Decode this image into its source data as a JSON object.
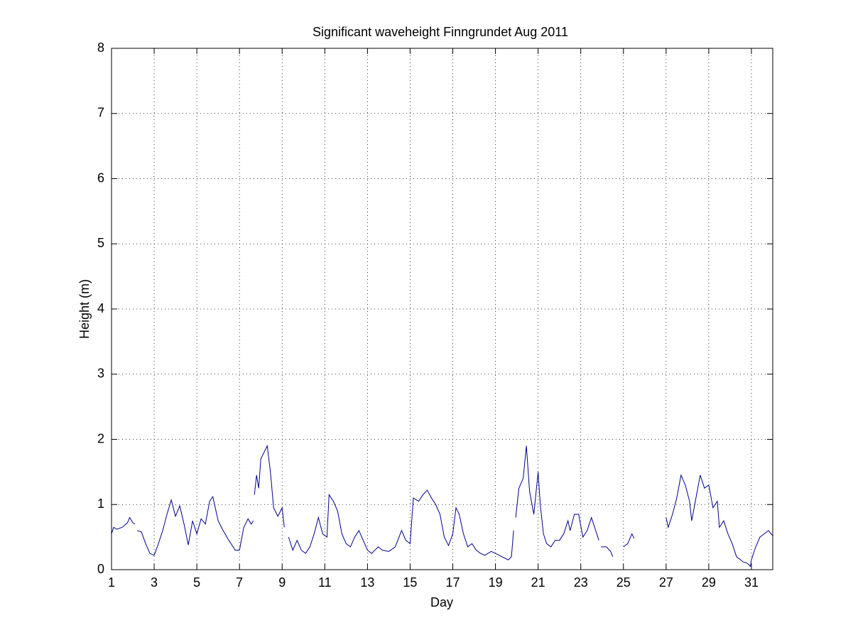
{
  "chart_data": {
    "type": "line",
    "title": "Significant waveheight Finngrundet Aug 2011",
    "xlabel": "Day",
    "ylabel": "Height (m)",
    "xlim": [
      1,
      32
    ],
    "ylim": [
      0,
      8
    ],
    "xticks": [
      1,
      3,
      5,
      7,
      9,
      11,
      13,
      15,
      17,
      19,
      21,
      23,
      25,
      27,
      29,
      31
    ],
    "yticks": [
      0,
      1,
      2,
      3,
      4,
      5,
      6,
      7,
      8
    ],
    "grid": true,
    "series": [
      {
        "color": "#00008b",
        "x": [
          1.0,
          1.1,
          1.25,
          1.5,
          1.75,
          1.85,
          2.0,
          2.1,
          2.15,
          2.2,
          2.4,
          2.6,
          2.8,
          3.0,
          3.2,
          3.4,
          3.6,
          3.8,
          4.0,
          4.2,
          4.4,
          4.6,
          4.8,
          5.0,
          5.2,
          5.4,
          5.6,
          5.75,
          6.0,
          6.2,
          6.5,
          6.8,
          7.0,
          7.2,
          7.4,
          7.55,
          7.65,
          7.68,
          7.7,
          7.8,
          7.9,
          8.0,
          8.15,
          8.3,
          8.45,
          8.6,
          8.8,
          9.0,
          9.1,
          9.2,
          9.3,
          9.5,
          9.7,
          9.9,
          10.1,
          10.3,
          10.5,
          10.7,
          10.9,
          11.1,
          11.2,
          11.4,
          11.6,
          11.8,
          12.0,
          12.2,
          12.4,
          12.6,
          12.8,
          13.0,
          13.2,
          13.5,
          13.7,
          14.0,
          14.3,
          14.6,
          14.8,
          15.0,
          15.15,
          15.4,
          15.6,
          15.8,
          16.0,
          16.2,
          16.4,
          16.6,
          16.8,
          17.0,
          17.15,
          17.3,
          17.5,
          17.7,
          17.9,
          18.1,
          18.3,
          18.5,
          18.8,
          19.0,
          19.3,
          19.6,
          19.75,
          19.85,
          19.9,
          19.95,
          20.1,
          20.3,
          20.45,
          20.6,
          20.8,
          21.0,
          21.1,
          21.25,
          21.4,
          21.6,
          21.8,
          22.0,
          22.2,
          22.4,
          22.5,
          22.7,
          22.9,
          23.1,
          23.3,
          23.5,
          23.7,
          23.85,
          23.9,
          23.95,
          24.2,
          24.4,
          24.5,
          24.75,
          25.0,
          25.2,
          25.4,
          25.5,
          26.2,
          27.0,
          27.1,
          27.3,
          27.5,
          27.7,
          27.9,
          28.1,
          28.2,
          28.4,
          28.6,
          28.8,
          29.0,
          29.2,
          29.4,
          29.5,
          29.7,
          29.9,
          30.1,
          30.3,
          30.5,
          30.6,
          30.8,
          30.95,
          31.0,
          31.2,
          31.4,
          31.6,
          31.8,
          32.0
        ],
        "values": [
          0.55,
          0.65,
          0.62,
          0.65,
          0.72,
          0.8,
          0.72,
          0.7,
          null,
          0.6,
          0.58,
          0.4,
          0.25,
          0.22,
          0.4,
          0.6,
          0.85,
          1.07,
          0.82,
          0.98,
          0.7,
          0.38,
          0.75,
          0.55,
          0.78,
          0.7,
          1.05,
          1.12,
          0.75,
          0.62,
          0.45,
          0.3,
          0.3,
          0.65,
          0.78,
          0.7,
          0.75,
          null,
          1.15,
          1.45,
          1.25,
          1.7,
          1.8,
          1.9,
          1.5,
          0.95,
          0.82,
          0.95,
          0.65,
          null,
          0.5,
          0.3,
          0.45,
          0.3,
          0.25,
          0.35,
          0.55,
          0.8,
          0.55,
          0.5,
          1.15,
          1.05,
          0.9,
          0.55,
          0.4,
          0.35,
          0.5,
          0.6,
          0.45,
          0.3,
          0.25,
          0.35,
          0.3,
          0.28,
          0.35,
          0.6,
          0.45,
          0.4,
          1.1,
          1.05,
          1.15,
          1.22,
          1.1,
          1.0,
          0.85,
          0.5,
          0.37,
          0.55,
          0.95,
          0.85,
          0.55,
          0.35,
          0.4,
          0.3,
          0.25,
          0.22,
          0.28,
          0.25,
          0.2,
          0.15,
          0.2,
          0.6,
          null,
          0.8,
          1.25,
          1.4,
          1.9,
          1.2,
          0.85,
          1.5,
          1.0,
          0.55,
          0.4,
          0.35,
          0.45,
          0.45,
          0.55,
          0.75,
          0.6,
          0.85,
          0.85,
          0.5,
          0.6,
          0.8,
          0.6,
          0.45,
          null,
          0.35,
          0.35,
          0.28,
          0.2,
          null,
          0.35,
          0.4,
          0.55,
          0.48,
          null,
          0.8,
          0.65,
          0.85,
          1.1,
          1.45,
          1.3,
          1.05,
          0.75,
          1.1,
          1.45,
          1.25,
          1.3,
          0.95,
          1.05,
          0.65,
          0.75,
          0.55,
          0.4,
          0.2,
          0.15,
          0.12,
          0.1,
          0.05,
          0.15,
          0.35,
          0.5,
          0.55,
          0.6,
          0.52
        ]
      }
    ]
  }
}
